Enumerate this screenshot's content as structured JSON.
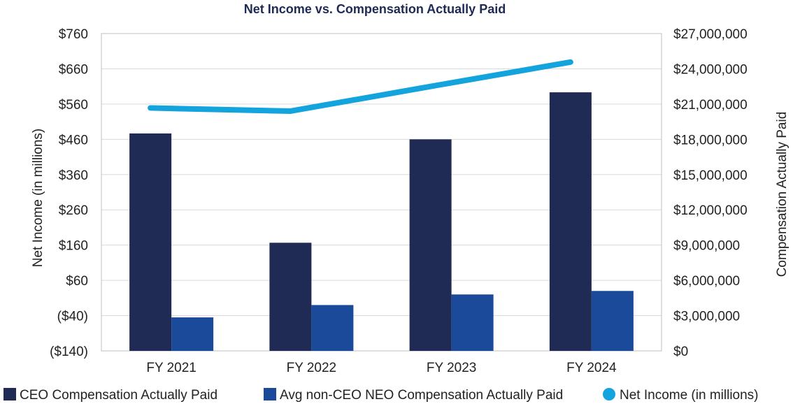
{
  "chart_data": {
    "type": "bar",
    "title": "Net Income vs. Compensation Actually Paid",
    "categories": [
      "FY 2021",
      "FY 2022",
      "FY 2023",
      "FY 2024"
    ],
    "y_left": {
      "label": "Net Income  (in millions)",
      "ticks": [
        "$760",
        "$660",
        "$560",
        "$460",
        "$360",
        "$260",
        "$160",
        "$60",
        "($40)",
        "($140)"
      ],
      "ylim": [
        -140,
        760
      ]
    },
    "y_right": {
      "label": "Compensation Actually Paid",
      "ticks": [
        "$27,000,000",
        "$24,000,000",
        "$21,000,000",
        "$18,000,000",
        "$15,000,000",
        "$12,000,000",
        "$9,000,000",
        "$6,000,000",
        "$3,000,000",
        "$0"
      ],
      "ylim": [
        0,
        27000000
      ]
    },
    "series": [
      {
        "name": "CEO Compensation Actually Paid",
        "type": "bar",
        "axis": "right",
        "color": "#1f2a55",
        "values": [
          18500000,
          9200000,
          18000000,
          22000000
        ]
      },
      {
        "name": "Avg non-CEO NEO Compensation Actually Paid",
        "type": "bar",
        "axis": "right",
        "color": "#1b4a9b",
        "values": [
          2850000,
          3900000,
          4800000,
          5100000
        ]
      },
      {
        "name": "Net Income  (in millions)",
        "type": "line",
        "axis": "left",
        "color": "#13a3dd",
        "values": [
          549,
          540,
          610,
          679
        ]
      }
    ],
    "legend_position": "bottom"
  }
}
